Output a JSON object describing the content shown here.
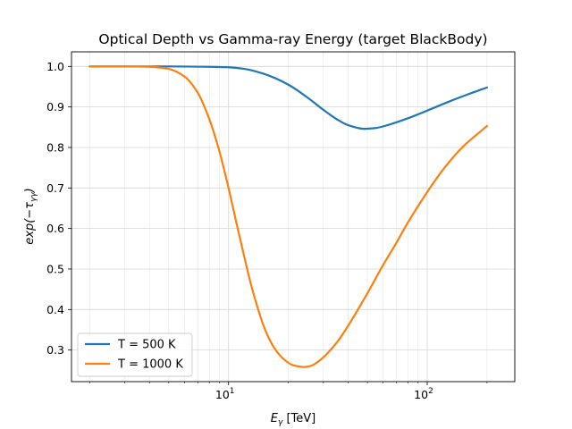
{
  "chart_data": {
    "type": "line",
    "title": "Optical Depth vs Gamma-ray Energy (target BlackBody)",
    "xlabel": {
      "base": "E",
      "sub": "γ",
      "unit": " [TeV]"
    },
    "ylabel": {
      "prefix": "exp(−τ",
      "sub": "γγ",
      "suffix": ")"
    },
    "x_scale": "log",
    "xlim": [
      1.62,
      276
    ],
    "ylim": [
      0.222,
      1.036
    ],
    "x_ticks": [
      {
        "value": 10,
        "base": "10",
        "exp": "1"
      },
      {
        "value": 100,
        "base": "10",
        "exp": "2"
      }
    ],
    "y_ticks": [
      {
        "value": 0.3,
        "label": "0.3"
      },
      {
        "value": 0.4,
        "label": "0.4"
      },
      {
        "value": 0.5,
        "label": "0.5"
      },
      {
        "value": 0.6,
        "label": "0.6"
      },
      {
        "value": 0.7,
        "label": "0.7"
      },
      {
        "value": 0.8,
        "label": "0.8"
      },
      {
        "value": 0.9,
        "label": "0.9"
      },
      {
        "value": 1.0,
        "label": "1.0"
      }
    ],
    "grid": "major-and-minor",
    "legend_position": "lower-left",
    "series": [
      {
        "name": "T = 500 K",
        "color": "#1f77b4",
        "x": [
          2,
          3,
          5,
          8,
          10,
          12,
          15,
          20,
          25,
          30,
          35,
          40,
          48,
          55,
          65,
          80,
          100,
          130,
          160,
          200
        ],
        "y": [
          1.0,
          1.0,
          1.0,
          0.999,
          0.998,
          0.994,
          0.982,
          0.955,
          0.923,
          0.893,
          0.87,
          0.855,
          0.846,
          0.848,
          0.857,
          0.872,
          0.891,
          0.914,
          0.931,
          0.948
        ]
      },
      {
        "name": "T = 1000 K",
        "color": "#ff7f0e",
        "x": [
          2,
          3,
          4,
          5,
          6,
          7,
          8,
          9,
          10,
          11,
          12,
          13,
          14,
          15,
          17,
          19,
          21,
          23,
          24,
          26,
          28,
          30,
          35,
          40,
          50,
          60,
          70,
          80,
          100,
          120,
          150,
          200
        ],
        "y": [
          1.0,
          1.0,
          0.999,
          0.994,
          0.975,
          0.935,
          0.87,
          0.79,
          0.7,
          0.61,
          0.53,
          0.46,
          0.405,
          0.36,
          0.305,
          0.277,
          0.263,
          0.259,
          0.258,
          0.261,
          0.27,
          0.282,
          0.318,
          0.36,
          0.44,
          0.51,
          0.565,
          0.615,
          0.69,
          0.745,
          0.8,
          0.853
        ]
      }
    ]
  }
}
